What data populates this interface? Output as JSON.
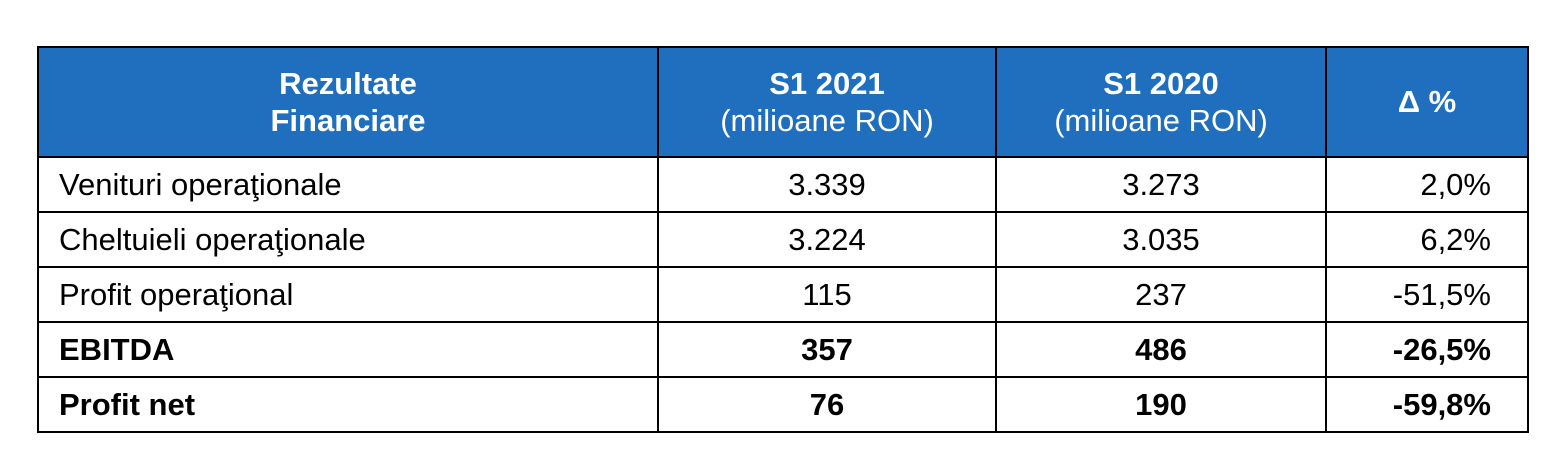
{
  "table": {
    "headers": {
      "col1_line1": "Rezultate",
      "col1_line2": "Financiare",
      "col2_line1": "S1 2021",
      "col2_line2": "(milioane RON)",
      "col3_line1": "S1 2020",
      "col3_line2": "(milioane RON)",
      "col4": "Δ %"
    },
    "rows": [
      {
        "label": "Venituri operaţionale",
        "s1_2021": "3.339",
        "s1_2020": "3.273",
        "delta": "2,0%",
        "bold": false
      },
      {
        "label": "Cheltuieli operaţionale",
        "s1_2021": "3.224",
        "s1_2020": "3.035",
        "delta": "6,2%",
        "bold": false
      },
      {
        "label": "Profit operaţional",
        "s1_2021": "115",
        "s1_2020": "237",
        "delta": "-51,5%",
        "bold": false
      },
      {
        "label": "EBITDA",
        "s1_2021": "357",
        "s1_2020": "486",
        "delta": "-26,5%",
        "bold": true
      },
      {
        "label": "Profit net",
        "s1_2021": "76",
        "s1_2020": "190",
        "delta": "-59,8%",
        "bold": true
      }
    ]
  },
  "colors": {
    "header_bg": "#1f6fbe",
    "header_text": "#ffffff",
    "border": "#000000"
  }
}
